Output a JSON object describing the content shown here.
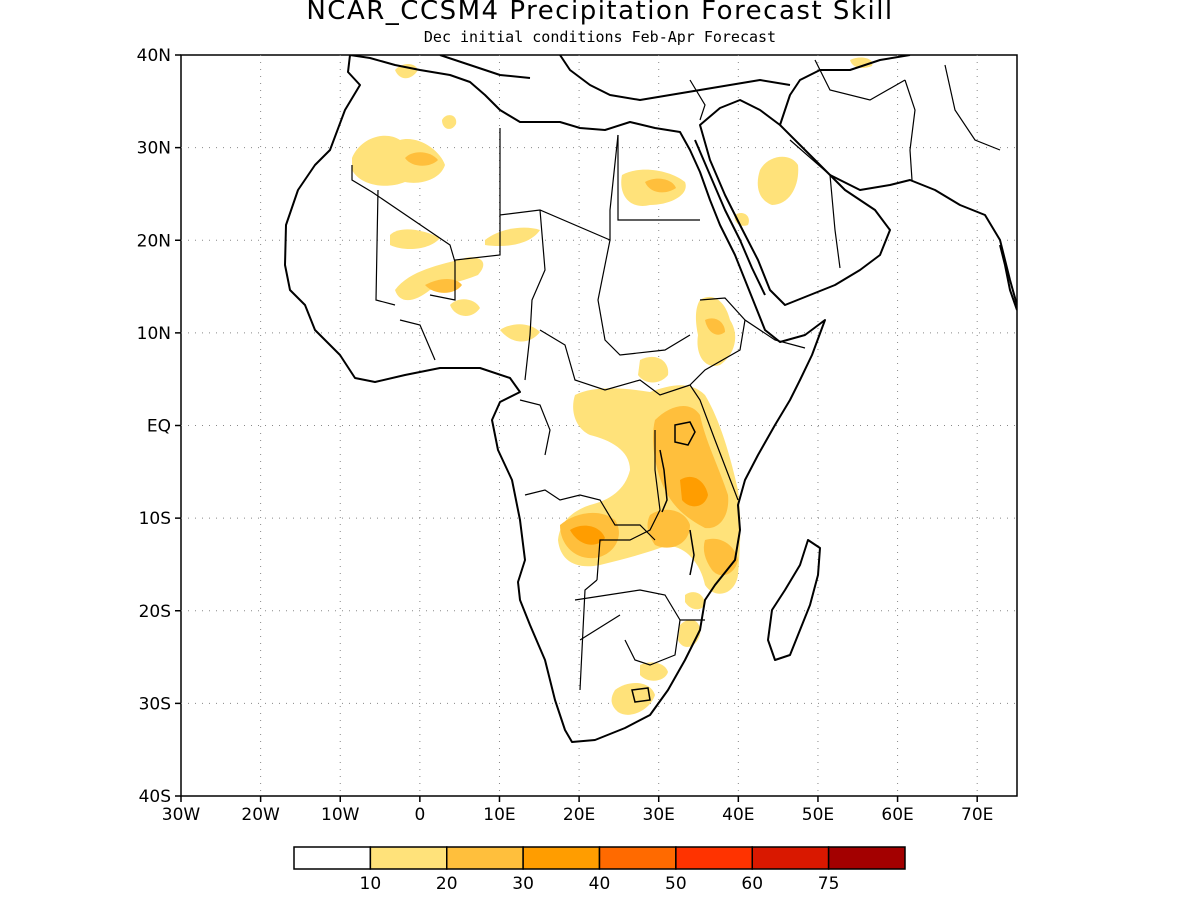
{
  "title": "NCAR_CCSM4 Precipitation Forecast Skill",
  "subtitle": "Dec initial conditions  Feb-Apr Forecast",
  "axes": {
    "lat_labels": [
      "40N",
      "30N",
      "20N",
      "10N",
      "EQ",
      "10S",
      "20S",
      "30S",
      "40S"
    ],
    "lon_labels": [
      "30W",
      "20W",
      "10W",
      "0",
      "10E",
      "20E",
      "30E",
      "40E",
      "50E",
      "60E",
      "70E"
    ]
  },
  "colorbar": {
    "colors": [
      "#ffffff",
      "#ffe27a",
      "#ffbf3c",
      "#ff9d00",
      "#ff6a00",
      "#ff3300",
      "#d91800",
      "#a30000"
    ],
    "labels": [
      "10",
      "20",
      "30",
      "40",
      "50",
      "60",
      "75"
    ]
  },
  "map": {
    "region": "Africa and Arabian Peninsula",
    "lon_range": [
      -30,
      75
    ],
    "lat_range": [
      -40,
      40
    ],
    "grid": "dotted"
  }
}
